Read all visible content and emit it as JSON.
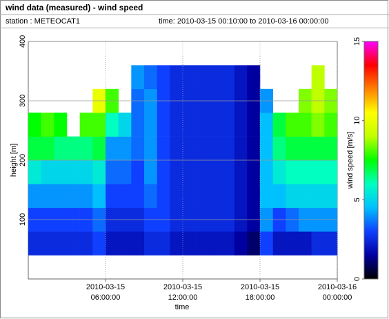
{
  "header": {
    "title": "wind data (measured) - wind speed",
    "station": "station : METEOCAT1",
    "time": "time: 2010-03-15 00:10:00 to 2010-03-16 00:00:00"
  },
  "chart_data": {
    "type": "heatmap",
    "x_label": "time",
    "y_label": "height [m]",
    "colorbar_label": "wind speed [m/s]",
    "xbins": [
      0,
      1,
      2,
      3,
      4,
      5,
      6,
      7,
      8,
      9,
      10,
      11,
      12,
      13,
      14,
      15,
      16,
      17,
      18,
      19,
      20,
      21,
      22,
      23,
      24
    ],
    "ybins": [
      40,
      80,
      120,
      160,
      200,
      240,
      280,
      320,
      360
    ],
    "z": [
      [
        2.5,
        2.5,
        2.5,
        2.5,
        2.5,
        3,
        2,
        2,
        2,
        2.5,
        2.5,
        2,
        2,
        2,
        2,
        2,
        1.5,
        1,
        3,
        2,
        2,
        2,
        2.5,
        2.5
      ],
      [
        3,
        3,
        3,
        3,
        3,
        3.5,
        2.5,
        2.5,
        2.5,
        3,
        3,
        2.5,
        2.5,
        2.5,
        2.5,
        2.5,
        2,
        1.5,
        4,
        3,
        3.5,
        4,
        4,
        4
      ],
      [
        4,
        4,
        4,
        4,
        4,
        4.5,
        3,
        3,
        3,
        3.5,
        3,
        2.5,
        2.5,
        2.5,
        2.5,
        2.5,
        2,
        1.5,
        4.5,
        4.5,
        5,
        5,
        5,
        5
      ],
      [
        5.5,
        5,
        5,
        5,
        5,
        5.5,
        3.5,
        3.5,
        3,
        4,
        3,
        2.5,
        2.5,
        2.5,
        2.5,
        2.5,
        2,
        1.5,
        4.5,
        5.5,
        6,
        6,
        6,
        6
      ],
      [
        7,
        7,
        6.5,
        6.5,
        6.5,
        7,
        4,
        4,
        3.5,
        4,
        3,
        2.5,
        2.5,
        2.5,
        2.5,
        2.5,
        2,
        1.5,
        4.5,
        6.5,
        7,
        7,
        7,
        7
      ],
      [
        7.5,
        8,
        7.5,
        null,
        8,
        8,
        6,
        5,
        3.5,
        4,
        3,
        2.5,
        2.5,
        2.5,
        2.5,
        2.5,
        2,
        1.5,
        4.5,
        7,
        8,
        8,
        8.5,
        8
      ],
      [
        null,
        null,
        null,
        null,
        null,
        10,
        8,
        null,
        3.5,
        4,
        3,
        2.5,
        2.5,
        2.5,
        2.5,
        2.5,
        2,
        1.5,
        4,
        null,
        null,
        8.5,
        9,
        8.5
      ],
      [
        null,
        null,
        null,
        null,
        null,
        null,
        null,
        null,
        4,
        3.5,
        3,
        2.5,
        2.5,
        2.5,
        2.5,
        2.5,
        2,
        1.5,
        null,
        null,
        null,
        null,
        9,
        null
      ]
    ],
    "xlim": [
      0,
      24
    ],
    "ylim": [
      0,
      400
    ],
    "xticks": [
      {
        "value": 6,
        "label": "2010-03-15\n06:00:00"
      },
      {
        "value": 12,
        "label": "2010-03-15\n12:00:00"
      },
      {
        "value": 18,
        "label": "2010-03-15\n18:00:00"
      },
      {
        "value": 24,
        "label": "2010-03-16\n00:00:00"
      }
    ],
    "yticks": [
      100,
      200,
      300,
      400
    ],
    "zlim": [
      0,
      15
    ],
    "zticks": [
      0,
      5,
      10,
      15
    ],
    "colormap": [
      "#000000",
      "#0000a0",
      "#1040ff",
      "#00c0ff",
      "#00ffc0",
      "#00ff00",
      "#c0ff00",
      "#ffff00",
      "#ff8000",
      "#ff0000",
      "#ff00ff"
    ],
    "grid": true
  }
}
